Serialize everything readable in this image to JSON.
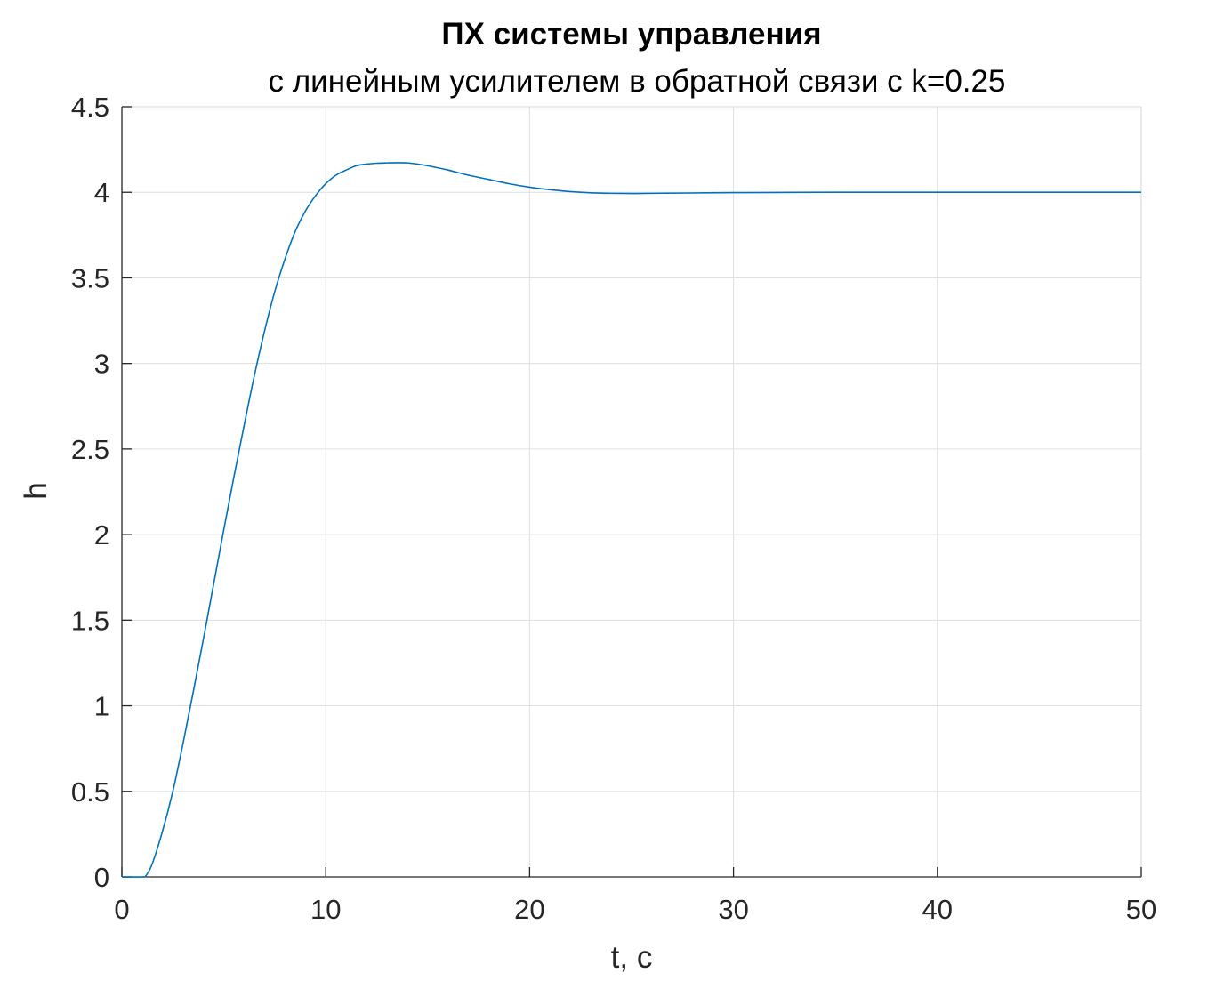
{
  "chart_data": {
    "type": "line",
    "title": "ПХ системы управления",
    "subtitle": "с линейным усилителем в обратной связи с k=0.25",
    "xlabel": "t, c",
    "ylabel": "h",
    "xlim": [
      0,
      50
    ],
    "ylim": [
      0,
      4.5
    ],
    "xticks": [
      0,
      10,
      20,
      30,
      40,
      50
    ],
    "xtick_labels": [
      "0",
      "10",
      "20",
      "30",
      "40",
      "50"
    ],
    "yticks": [
      0,
      0.5,
      1,
      1.5,
      2,
      2.5,
      3,
      3.5,
      4,
      4.5
    ],
    "ytick_labels": [
      "0",
      "0.5",
      "1",
      "1.5",
      "2",
      "2.5",
      "3",
      "3.5",
      "4",
      "4.5"
    ],
    "grid": true,
    "box": true,
    "series": [
      {
        "color": "#0072bd",
        "x": [
          0,
          1,
          1.2,
          1.5,
          2,
          2.5,
          3,
          3.5,
          4,
          4.5,
          5,
          5.5,
          6,
          6.5,
          7,
          7.5,
          8,
          8.5,
          9,
          9.5,
          10,
          10.5,
          11,
          11.5,
          12,
          12.5,
          13,
          13.5,
          14,
          14.5,
          15,
          16,
          17,
          18,
          19,
          20,
          21,
          22,
          23,
          24,
          25,
          26,
          28,
          30,
          32,
          35,
          40,
          45,
          50
        ],
        "y": [
          0,
          0,
          0.01,
          0.08,
          0.27,
          0.5,
          0.78,
          1.08,
          1.39,
          1.71,
          2.03,
          2.34,
          2.64,
          2.93,
          3.19,
          3.42,
          3.61,
          3.77,
          3.89,
          3.98,
          4.05,
          4.1,
          4.13,
          4.155,
          4.165,
          4.17,
          4.172,
          4.173,
          4.172,
          4.165,
          4.155,
          4.13,
          4.1,
          4.075,
          4.05,
          4.03,
          4.015,
          4.004,
          3.997,
          3.994,
          3.993,
          3.994,
          3.996,
          3.998,
          3.999,
          4.0,
          4.0,
          4.0,
          4.0
        ]
      }
    ]
  }
}
